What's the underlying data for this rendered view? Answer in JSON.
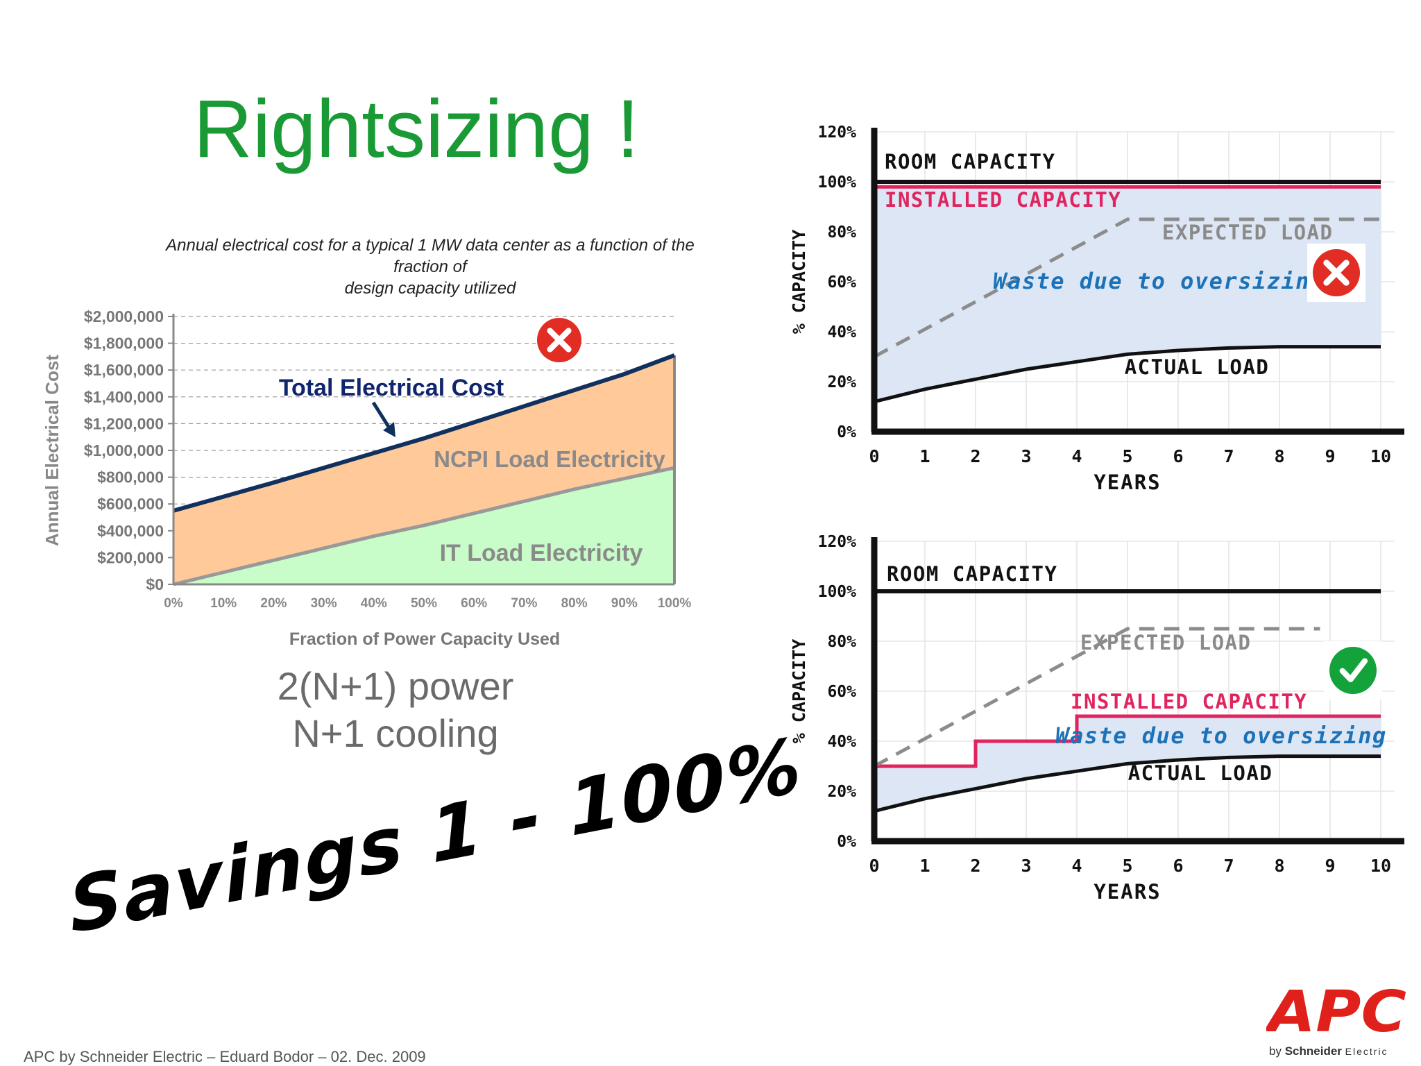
{
  "slide": {
    "title": "Rightsizing !",
    "subtitle_line1": "Annual electrical cost for a typical 1 MW data center as a function of the fraction of",
    "subtitle_line2": "design capacity utilized",
    "config_line1": "2(N+1) power",
    "config_line2": "N+1 cooling",
    "savings": "Savings 1 - 100%",
    "footer": "APC by Schneider Electric – Eduard Bodor – 02. Dec. 2009",
    "logo_text": "APC",
    "logo_sub_by": "by",
    "logo_sub_brand": "Schneider",
    "logo_sub_tail": "Electric"
  },
  "colors": {
    "title_green": "#1a9a35",
    "ncpi_orange": "#ffc99a",
    "it_green": "#c8fcc8",
    "total_line": "#10305e",
    "installed_red": "#e0245e",
    "waste_fill": "#dde6f4",
    "waste_text": "#1c72b8",
    "apc_red": "#e0201a",
    "x_red": "#e12d24",
    "check_green": "#13a33a"
  },
  "chart_data": [
    {
      "type": "area",
      "ylabel": "Annual Electrical Cost",
      "xlabel": "Fraction of Power Capacity Used",
      "x": [
        0,
        10,
        20,
        30,
        40,
        50,
        60,
        70,
        80,
        90,
        100
      ],
      "xticks": [
        "0%",
        "10%",
        "20%",
        "30%",
        "40%",
        "50%",
        "60%",
        "70%",
        "80%",
        "90%",
        "100%"
      ],
      "yticks": [
        "$0",
        "$200,000",
        "$400,000",
        "$600,000",
        "$800,000",
        "$1,000,000",
        "$1,200,000",
        "$1,400,000",
        "$1,600,000",
        "$1,800,000",
        "$2,000,000"
      ],
      "ylim": [
        0,
        2000000
      ],
      "series": [
        {
          "name": "IT Load Electricity",
          "values": [
            0,
            90000,
            180000,
            270000,
            360000,
            440000,
            530000,
            620000,
            710000,
            790000,
            870000
          ]
        },
        {
          "name": "NCPI Load Electricity",
          "values": [
            550000,
            565000,
            580000,
            600000,
            620000,
            650000,
            680000,
            710000,
            740000,
            780000,
            840000
          ]
        }
      ],
      "line_label": "Total Electrical Cost",
      "total_values": [
        550000,
        655000,
        760000,
        870000,
        980000,
        1090000,
        1210000,
        1330000,
        1450000,
        1570000,
        1710000
      ],
      "grid": true,
      "badge": "x"
    },
    {
      "type": "line",
      "ylabel": "% CAPACITY",
      "xlabel": "YEARS",
      "xticks": [
        "0",
        "1",
        "2",
        "3",
        "4",
        "5",
        "6",
        "7",
        "8",
        "9",
        "10"
      ],
      "yticks": [
        "0%",
        "20%",
        "40%",
        "60%",
        "80%",
        "100%",
        "120%"
      ],
      "xlim": [
        0,
        10
      ],
      "ylim": [
        0,
        120
      ],
      "room_capacity_label": "ROOM CAPACITY",
      "room_capacity": 100,
      "installed_label": "INSTALLED CAPACITY",
      "installed": {
        "x": [
          0,
          10
        ],
        "y": [
          98,
          98
        ]
      },
      "expected_label": "EXPECTED LOAD",
      "expected": {
        "x": [
          0,
          5,
          10
        ],
        "y": [
          30,
          85,
          85
        ]
      },
      "actual_label": "ACTUAL LOAD",
      "actual": {
        "x": [
          0,
          1,
          2,
          3,
          4,
          5,
          6,
          7,
          8,
          9,
          10
        ],
        "y": [
          12,
          17,
          21,
          25,
          28,
          31,
          32.5,
          33.5,
          34,
          34,
          34
        ]
      },
      "waste_label": "Waste due to oversizing",
      "badge": "x"
    },
    {
      "type": "line",
      "ylabel": "% CAPACITY",
      "xlabel": "YEARS",
      "xticks": [
        "0",
        "1",
        "2",
        "3",
        "4",
        "5",
        "6",
        "7",
        "8",
        "9",
        "10"
      ],
      "yticks": [
        "0%",
        "20%",
        "40%",
        "60%",
        "80%",
        "100%",
        "120%"
      ],
      "xlim": [
        0,
        10
      ],
      "ylim": [
        0,
        120
      ],
      "room_capacity_label": "ROOM CAPACITY",
      "room_capacity": 100,
      "installed_label": "INSTALLED CAPACITY",
      "installed": {
        "x": [
          0,
          2,
          2,
          4,
          4,
          10
        ],
        "y": [
          30,
          30,
          40,
          40,
          50,
          50
        ]
      },
      "expected_label": "EXPECTED LOAD",
      "expected": {
        "x": [
          0,
          5,
          8.8
        ],
        "y": [
          30,
          85,
          85
        ]
      },
      "actual_label": "ACTUAL LOAD",
      "actual": {
        "x": [
          0,
          1,
          2,
          3,
          4,
          5,
          6,
          7,
          8,
          9,
          10
        ],
        "y": [
          12,
          17,
          21,
          25,
          28,
          31,
          32.5,
          33.5,
          34,
          34,
          34
        ]
      },
      "waste_label": "Waste due to oversizing",
      "badge": "check"
    }
  ]
}
